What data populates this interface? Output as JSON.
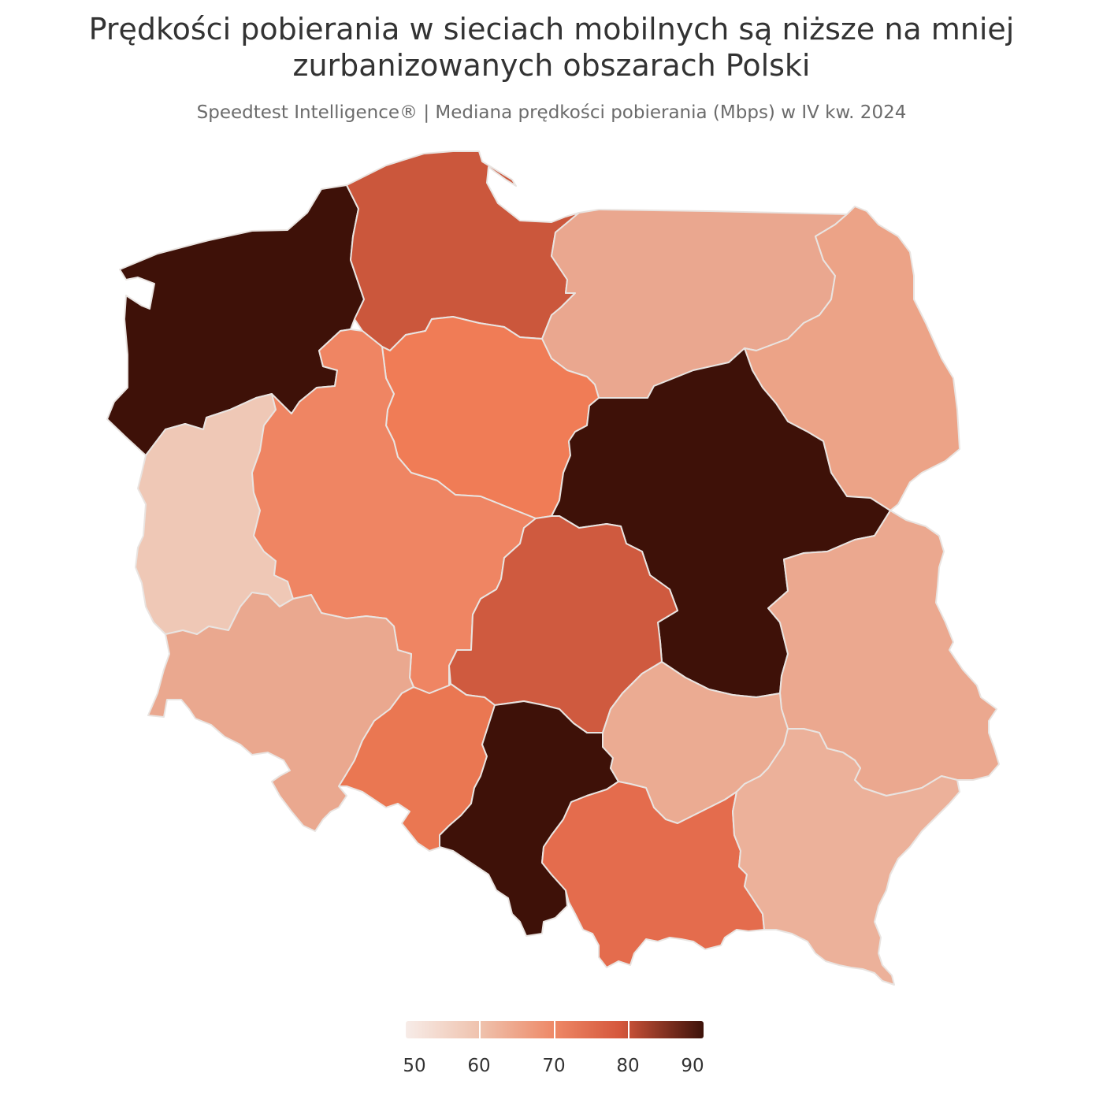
{
  "header": {
    "title_line1": "Prędkości pobierania w sieciach mobilnych są niższe na mniej",
    "title_line2": "zurbanizowanych obszarach Polski",
    "subtitle": "Speedtest Intelligence® | Mediana prędkości pobierania (Mbps) w IV kw. 2024"
  },
  "legend": {
    "ticks": [
      "50",
      "60",
      "70",
      "80",
      "90"
    ],
    "range": [
      50,
      90
    ],
    "color_low": "#f7ece8",
    "color_high": "#3d120a"
  },
  "map": {
    "metric": "median_download_mbps",
    "regions": [
      {
        "id": "zachodniopomorskie",
        "fill": "#3e1108"
      },
      {
        "id": "pomorskie",
        "fill": "#cb573c"
      },
      {
        "id": "warminsko-mazurskie",
        "fill": "#eaa78f"
      },
      {
        "id": "podlaskie",
        "fill": "#eca387"
      },
      {
        "id": "kujawsko-pomorskie",
        "fill": "#f07c56"
      },
      {
        "id": "lubuskie",
        "fill": "#efc8b6"
      },
      {
        "id": "wielkopolskie",
        "fill": "#ef8563"
      },
      {
        "id": "mazowieckie",
        "fill": "#3e1108"
      },
      {
        "id": "lodzkie",
        "fill": "#cf5a3f"
      },
      {
        "id": "lubelskie",
        "fill": "#eba88f"
      },
      {
        "id": "dolnoslaskie",
        "fill": "#eaa88f"
      },
      {
        "id": "opolskie",
        "fill": "#ea7752"
      },
      {
        "id": "slaskie",
        "fill": "#3e1108"
      },
      {
        "id": "swietokrzyskie",
        "fill": "#ebab92"
      },
      {
        "id": "malopolskie",
        "fill": "#e46c4d"
      },
      {
        "id": "podkarpackie",
        "fill": "#ecb19a"
      }
    ]
  }
}
